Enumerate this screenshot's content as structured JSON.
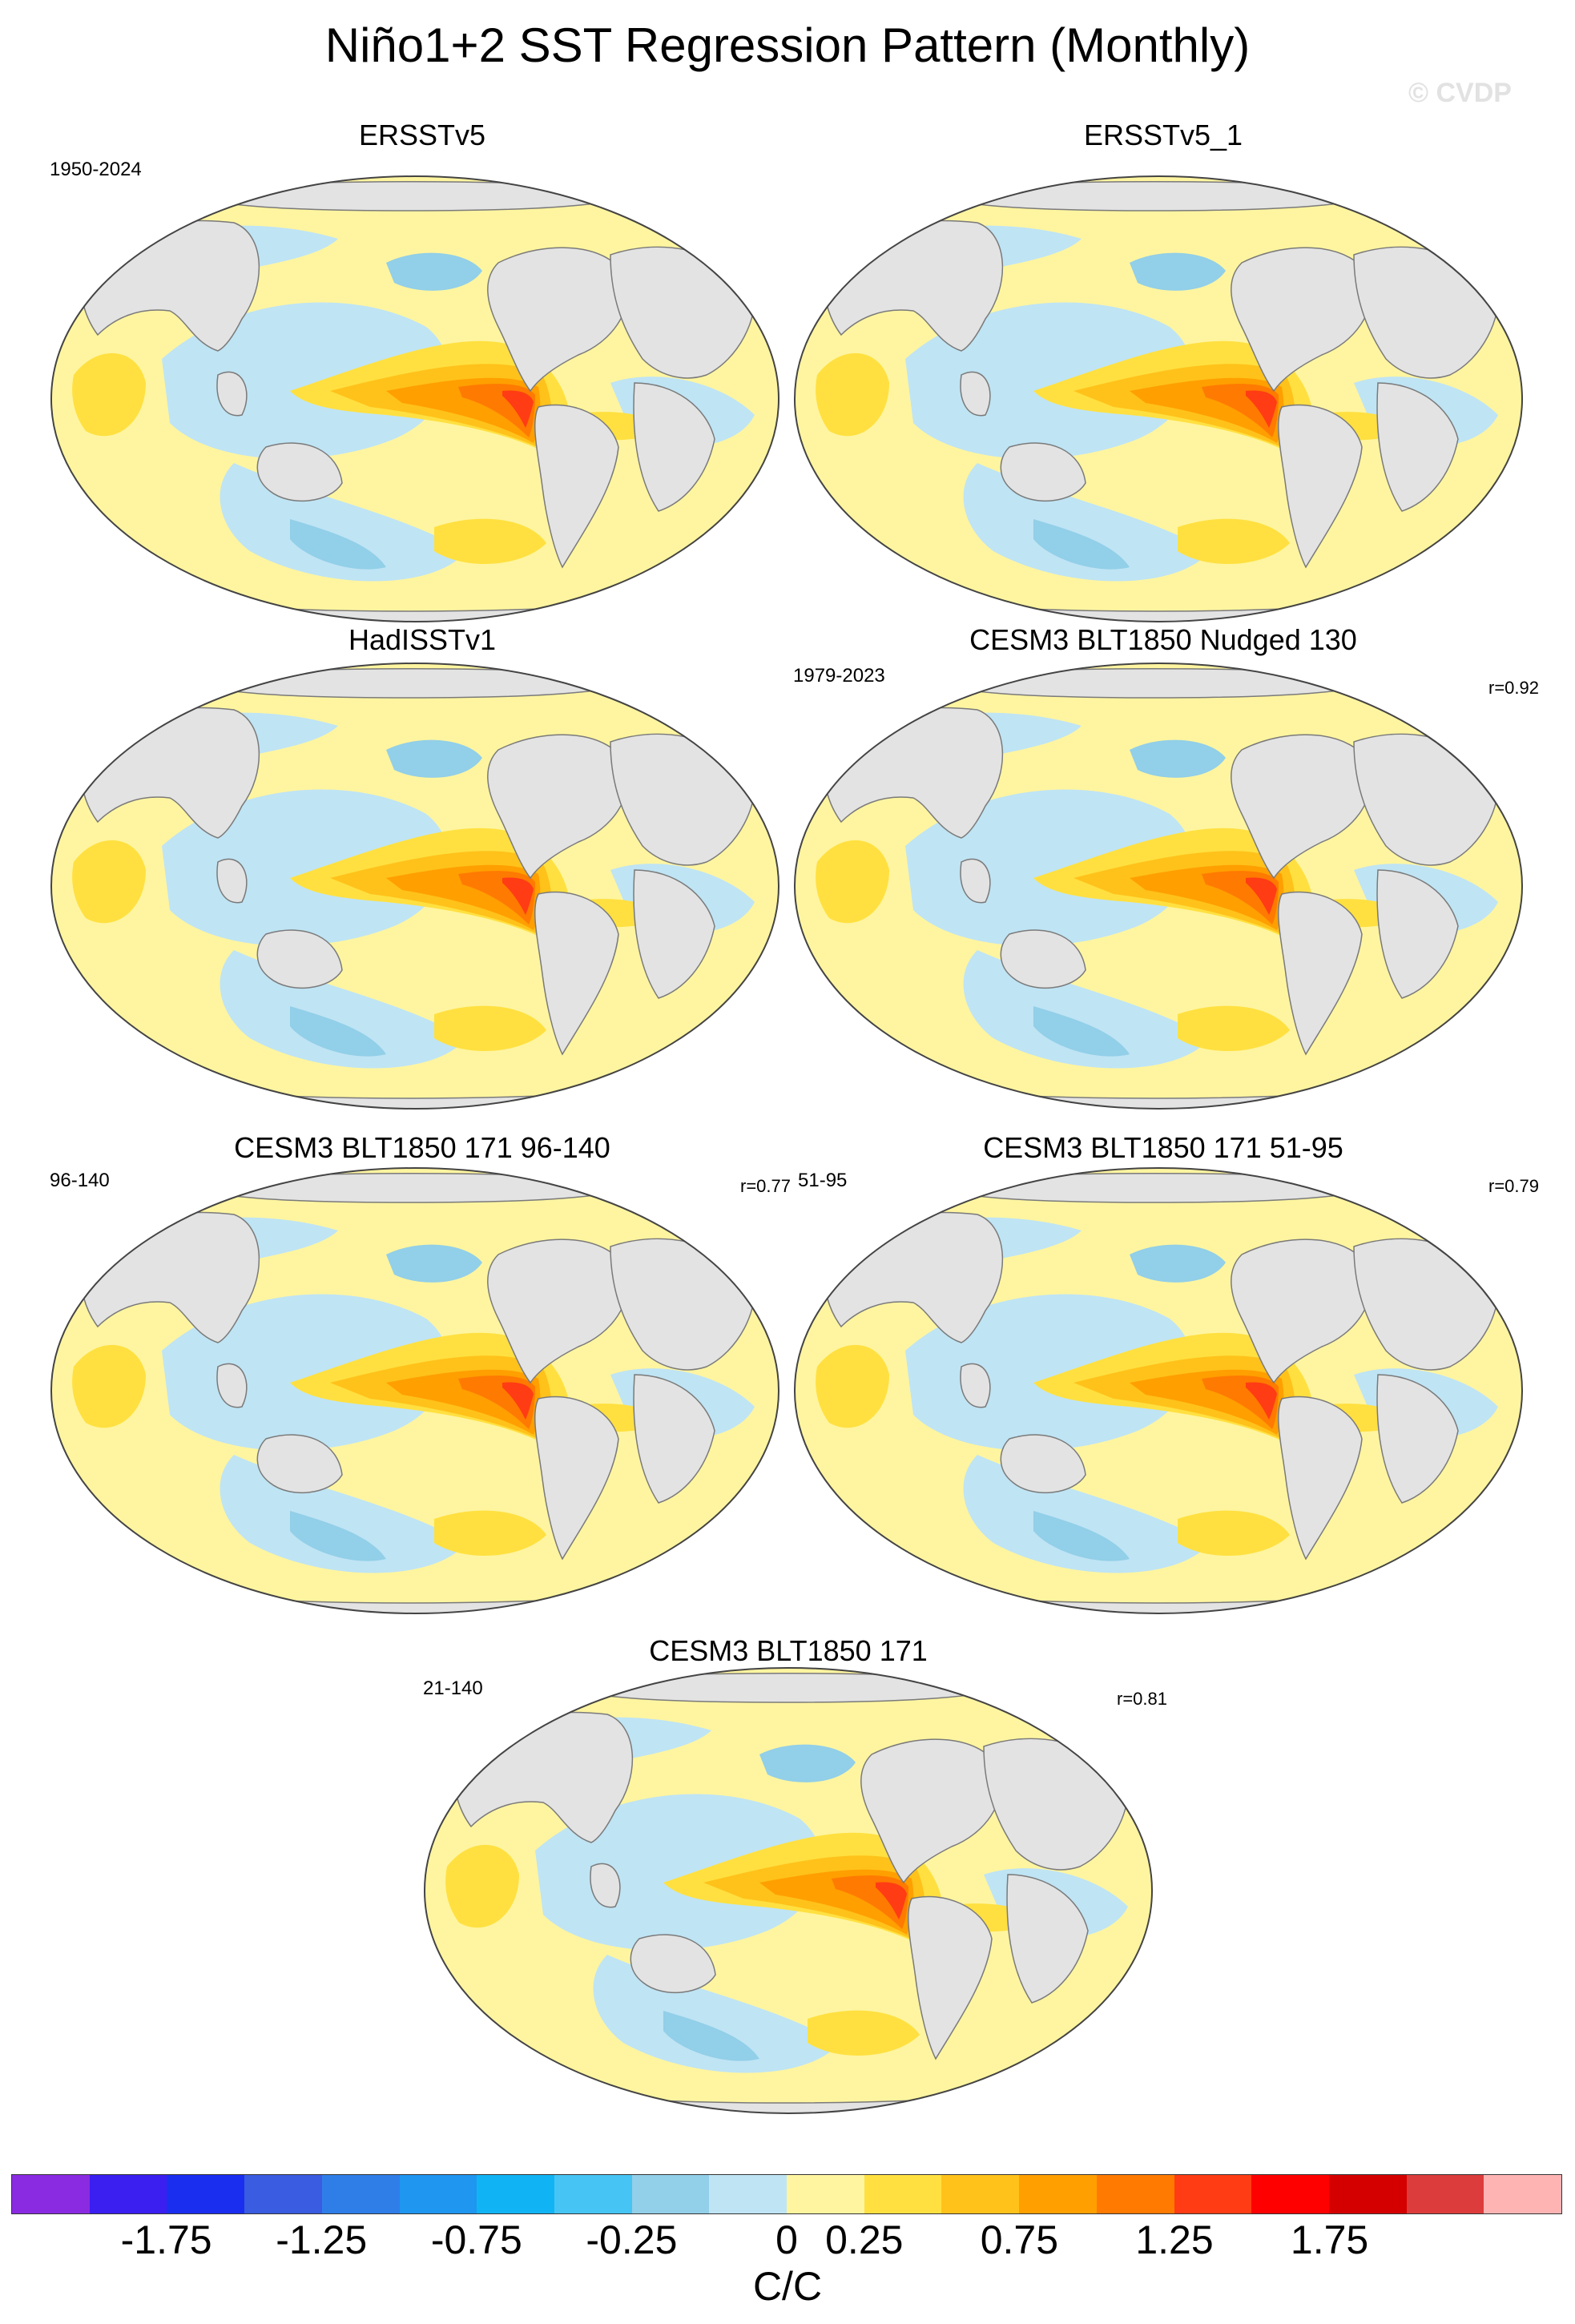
{
  "header": {
    "title": "Niño1+2 SST Regression Pattern (Monthly)",
    "watermark": "© CVDP"
  },
  "panels": [
    {
      "title": "ERSSTv5",
      "years": "1950-2024",
      "r": ""
    },
    {
      "title": "ERSSTv5_1",
      "years": "",
      "r": ""
    },
    {
      "title": "HadISSTv1",
      "years": "",
      "r": ""
    },
    {
      "title": "CESM3 BLT1850 Nudged 130",
      "years": "1979-2023",
      "r": "r=0.92"
    },
    {
      "title": "CESM3 BLT1850 171 96-140",
      "years": "96-140",
      "r": "r=0.77"
    },
    {
      "title": "CESM3 BLT1850 171 51-95",
      "years": "51-95",
      "r": "r=0.79"
    },
    {
      "title": "CESM3 BLT1850 171",
      "years": "21-140",
      "r": "r=0.81"
    }
  ],
  "colorbar": {
    "units": "C/C",
    "tick_labels": [
      "-1.75",
      "-1.25",
      "-0.75",
      "-0.25",
      "0",
      "0.25",
      "0.75",
      "1.25",
      "1.75"
    ],
    "colors": [
      "#8a2be2",
      "#3a1ff0",
      "#1a2ef0",
      "#3a5ce0",
      "#2f7ee8",
      "#1f96f0",
      "#10b4f4",
      "#46c4f4",
      "#92cfe8",
      "#bfe4f4",
      "#fff5a0",
      "#ffe040",
      "#ffc21a",
      "#ff9f00",
      "#ff7a00",
      "#ff3c14",
      "#ff0000",
      "#d40000",
      "#dc3c3c",
      "#ffb4b4"
    ]
  }
}
